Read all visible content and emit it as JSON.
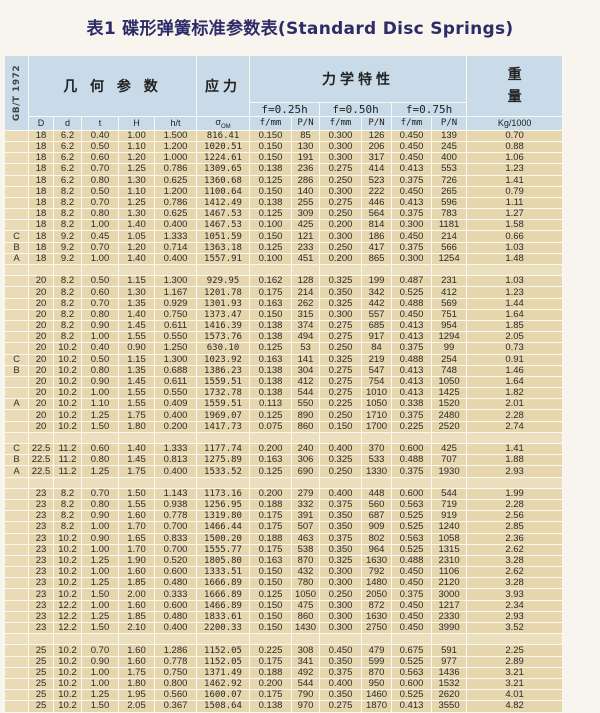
{
  "title": "表1 碟形弹簧标准参数表(Standard Disc Springs)",
  "header": {
    "standard": "GB/T 1972",
    "geometry": "几 何 参 数",
    "stress": "应力",
    "mechanical": "力学特性",
    "weight": "重量",
    "f025": "f=0.25h",
    "f050": "f=0.50h",
    "f075": "f=0.75h",
    "col_D": "D",
    "col_d": "d",
    "col_t": "t",
    "col_H": "H",
    "col_ht": "h/t",
    "col_sigma": "σ",
    "col_sigma_sub": "OM",
    "col_fmm": "f/mm",
    "col_PN": "P/N",
    "col_kg": "Kg/1000"
  },
  "groups": [
    [
      [
        "",
        "18",
        "6.2",
        "0.40",
        "1.00",
        "1.500",
        "816.41",
        "0.150",
        "85",
        "0.300",
        "126",
        "0.450",
        "139",
        "0.70"
      ],
      [
        "",
        "18",
        "6.2",
        "0.50",
        "1.10",
        "1.200",
        "1020.51",
        "0.150",
        "130",
        "0.300",
        "206",
        "0.450",
        "245",
        "0.88"
      ],
      [
        "",
        "18",
        "6.2",
        "0.60",
        "1.20",
        "1.000",
        "1224.61",
        "0.150",
        "191",
        "0.300",
        "317",
        "0.450",
        "400",
        "1.06"
      ],
      [
        "",
        "18",
        "6.2",
        "0.70",
        "1.25",
        "0.786",
        "1309.65",
        "0.138",
        "236",
        "0.275",
        "414",
        "0.413",
        "553",
        "1.23"
      ],
      [
        "",
        "18",
        "6.2",
        "0.80",
        "1.30",
        "0.625",
        "1360.68",
        "0.125",
        "286",
        "0.250",
        "523",
        "0.375",
        "726",
        "1.41"
      ],
      [
        "",
        "18",
        "8.2",
        "0.50",
        "1.10",
        "1.200",
        "1100.64",
        "0.150",
        "140",
        "0.300",
        "222",
        "0.450",
        "265",
        "0.79"
      ],
      [
        "",
        "18",
        "8.2",
        "0.70",
        "1.25",
        "0.786",
        "1412.49",
        "0.138",
        "255",
        "0.275",
        "446",
        "0.413",
        "596",
        "1.11"
      ],
      [
        "",
        "18",
        "8.2",
        "0.80",
        "1.30",
        "0.625",
        "1467.53",
        "0.125",
        "309",
        "0.250",
        "564",
        "0.375",
        "783",
        "1.27"
      ],
      [
        "",
        "18",
        "8.2",
        "1.00",
        "1.40",
        "0.400",
        "1467.53",
        "0.100",
        "425",
        "0.200",
        "814",
        "0.300",
        "1181",
        "1.58"
      ],
      [
        "C",
        "18",
        "9.2",
        "0.45",
        "1.05",
        "1.333",
        "1051.59",
        "0.150",
        "121",
        "0.300",
        "186",
        "0.450",
        "214",
        "0.66"
      ],
      [
        "B",
        "18",
        "9.2",
        "0.70",
        "1.20",
        "0.714",
        "1363.18",
        "0.125",
        "233",
        "0.250",
        "417",
        "0.375",
        "566",
        "1.03"
      ],
      [
        "A",
        "18",
        "9.2",
        "1.00",
        "1.40",
        "0.400",
        "1557.91",
        "0.100",
        "451",
        "0.200",
        "865",
        "0.300",
        "1254",
        "1.48"
      ]
    ],
    [
      [
        "",
        "20",
        "8.2",
        "0.50",
        "1.15",
        "1.300",
        "929.95",
        "0.162",
        "128",
        "0.325",
        "199",
        "0.487",
        "231",
        "1.03"
      ],
      [
        "",
        "20",
        "8.2",
        "0.60",
        "1.30",
        "1.167",
        "1201.78",
        "0.175",
        "214",
        "0.350",
        "342",
        "0.525",
        "412",
        "1.23"
      ],
      [
        "",
        "20",
        "8.2",
        "0.70",
        "1.35",
        "0.929",
        "1301.93",
        "0.163",
        "262",
        "0.325",
        "442",
        "0.488",
        "569",
        "1.44"
      ],
      [
        "",
        "20",
        "8.2",
        "0.80",
        "1.40",
        "0.750",
        "1373.47",
        "0.150",
        "315",
        "0.300",
        "557",
        "0.450",
        "751",
        "1.64"
      ],
      [
        "",
        "20",
        "8.2",
        "0.90",
        "1.45",
        "0.611",
        "1416.39",
        "0.138",
        "374",
        "0.275",
        "685",
        "0.413",
        "954",
        "1.85"
      ],
      [
        "",
        "20",
        "8.2",
        "1.00",
        "1.55",
        "0.550",
        "1573.76",
        "0.138",
        "494",
        "0.275",
        "917",
        "0.413",
        "1294",
        "2.05"
      ],
      [
        "",
        "20",
        "10.2",
        "0.40",
        "0.90",
        "1.250",
        "630.10",
        "0.125",
        "53",
        "0.250",
        "84",
        "0.375",
        "99",
        "0.73"
      ],
      [
        "C",
        "20",
        "10.2",
        "0.50",
        "1.15",
        "1.300",
        "1023.92",
        "0.163",
        "141",
        "0.325",
        "219",
        "0.488",
        "254",
        "0.91"
      ],
      [
        "B",
        "20",
        "10.2",
        "0.80",
        "1.35",
        "0.688",
        "1386.23",
        "0.138",
        "304",
        "0.275",
        "547",
        "0.413",
        "748",
        "1.46"
      ],
      [
        "",
        "20",
        "10.2",
        "0.90",
        "1.45",
        "0.611",
        "1559.51",
        "0.138",
        "412",
        "0.275",
        "754",
        "0.413",
        "1050",
        "1.64"
      ],
      [
        "",
        "20",
        "10.2",
        "1.00",
        "1.55",
        "0.550",
        "1732.78",
        "0.138",
        "544",
        "0.275",
        "1010",
        "0.413",
        "1425",
        "1.82"
      ],
      [
        "A",
        "20",
        "10.2",
        "1.10",
        "1.55",
        "0.409",
        "1559.51",
        "0.113",
        "550",
        "0.225",
        "1050",
        "0.338",
        "1520",
        "2.01"
      ],
      [
        "",
        "20",
        "10.2",
        "1.25",
        "1.75",
        "0.400",
        "1969.07",
        "0.125",
        "890",
        "0.250",
        "1710",
        "0.375",
        "2480",
        "2.28"
      ],
      [
        "",
        "20",
        "10.2",
        "1.50",
        "1.80",
        "0.200",
        "1417.73",
        "0.075",
        "860",
        "0.150",
        "1700",
        "0.225",
        "2520",
        "2.74"
      ]
    ],
    [
      [
        "C",
        "22.5",
        "11.2",
        "0.60",
        "1.40",
        "1.333",
        "1177.74",
        "0.200",
        "240",
        "0.400",
        "370",
        "0.600",
        "425",
        "1.41"
      ],
      [
        "B",
        "22.5",
        "11.2",
        "0.80",
        "1.45",
        "0.813",
        "1275.89",
        "0.163",
        "306",
        "0.325",
        "533",
        "0.488",
        "707",
        "1.88"
      ],
      [
        "A",
        "22.5",
        "11.2",
        "1.25",
        "1.75",
        "0.400",
        "1533.52",
        "0.125",
        "690",
        "0.250",
        "1330",
        "0.375",
        "1930",
        "2.93"
      ]
    ],
    [
      [
        "",
        "23",
        "8.2",
        "0.70",
        "1.50",
        "1.143",
        "1173.16",
        "0.200",
        "279",
        "0.400",
        "448",
        "0.600",
        "544",
        "1.99"
      ],
      [
        "",
        "23",
        "8.2",
        "0.80",
        "1.55",
        "0.938",
        "1256.95",
        "0.188",
        "332",
        "0.375",
        "560",
        "0.563",
        "719",
        "2.28"
      ],
      [
        "",
        "23",
        "8.2",
        "0.90",
        "1.60",
        "0.778",
        "1319.80",
        "0.175",
        "391",
        "0.350",
        "687",
        "0.525",
        "919",
        "2.56"
      ],
      [
        "",
        "23",
        "8.2",
        "1.00",
        "1.70",
        "0.700",
        "1466.44",
        "0.175",
        "507",
        "0.350",
        "909",
        "0.525",
        "1240",
        "2.85"
      ],
      [
        "",
        "23",
        "10.2",
        "0.90",
        "1.65",
        "0.833",
        "1500.20",
        "0.188",
        "463",
        "0.375",
        "802",
        "0.563",
        "1058",
        "2.36"
      ],
      [
        "",
        "23",
        "10.2",
        "1.00",
        "1.70",
        "0.700",
        "1555.77",
        "0.175",
        "538",
        "0.350",
        "964",
        "0.525",
        "1315",
        "2.62"
      ],
      [
        "",
        "23",
        "10.2",
        "1.25",
        "1.90",
        "0.520",
        "1805.80",
        "0.163",
        "870",
        "0.325",
        "1630",
        "0.488",
        "2310",
        "3.28"
      ],
      [
        "",
        "23",
        "10.2",
        "1.00",
        "1.60",
        "0.600",
        "1333.51",
        "0.150",
        "432",
        "0.300",
        "792",
        "0.450",
        "1106",
        "2.62"
      ],
      [
        "",
        "23",
        "10.2",
        "1.25",
        "1.85",
        "0.480",
        "1666.89",
        "0.150",
        "780",
        "0.300",
        "1480",
        "0.450",
        "2120",
        "3.28"
      ],
      [
        "",
        "23",
        "10.2",
        "1.50",
        "2.00",
        "0.333",
        "1666.89",
        "0.125",
        "1050",
        "0.250",
        "2050",
        "0.375",
        "3000",
        "3.93"
      ],
      [
        "",
        "23",
        "12.2",
        "1.00",
        "1.60",
        "0.600",
        "1466.89",
        "0.150",
        "475",
        "0.300",
        "872",
        "0.450",
        "1217",
        "2.34"
      ],
      [
        "",
        "23",
        "12.2",
        "1.25",
        "1.85",
        "0.480",
        "1833.61",
        "0.150",
        "860",
        "0.300",
        "1630",
        "0.450",
        "2330",
        "2.93"
      ],
      [
        "",
        "23",
        "12.2",
        "1.50",
        "2.10",
        "0.400",
        "2200.33",
        "0.150",
        "1430",
        "0.300",
        "2750",
        "0.450",
        "3990",
        "3.52"
      ]
    ],
    [
      [
        "",
        "25",
        "10.2",
        "0.70",
        "1.60",
        "1.286",
        "1152.05",
        "0.225",
        "308",
        "0.450",
        "479",
        "0.675",
        "591",
        "2.25"
      ],
      [
        "",
        "25",
        "10.2",
        "0.90",
        "1.60",
        "0.778",
        "1152.05",
        "0.175",
        "341",
        "0.350",
        "599",
        "0.525",
        "977",
        "2.89"
      ],
      [
        "",
        "25",
        "10.2",
        "1.00",
        "1.75",
        "0.750",
        "1371.49",
        "0.188",
        "492",
        "0.375",
        "870",
        "0.563",
        "1436",
        "3.21"
      ],
      [
        "",
        "25",
        "10.2",
        "1.00",
        "1.80",
        "0.800",
        "1462.92",
        "0.200",
        "544",
        "0.400",
        "950",
        "0.600",
        "1532",
        "3.21"
      ],
      [
        "",
        "25",
        "10.2",
        "1.25",
        "1.95",
        "0.560",
        "1600.07",
        "0.175",
        "790",
        "0.350",
        "1460",
        "0.525",
        "2620",
        "4.01"
      ],
      [
        "",
        "25",
        "10.2",
        "1.50",
        "2.05",
        "0.367",
        "1508.64",
        "0.138",
        "970",
        "0.275",
        "1870",
        "0.413",
        "3550",
        "4.82"
      ]
    ]
  ]
}
